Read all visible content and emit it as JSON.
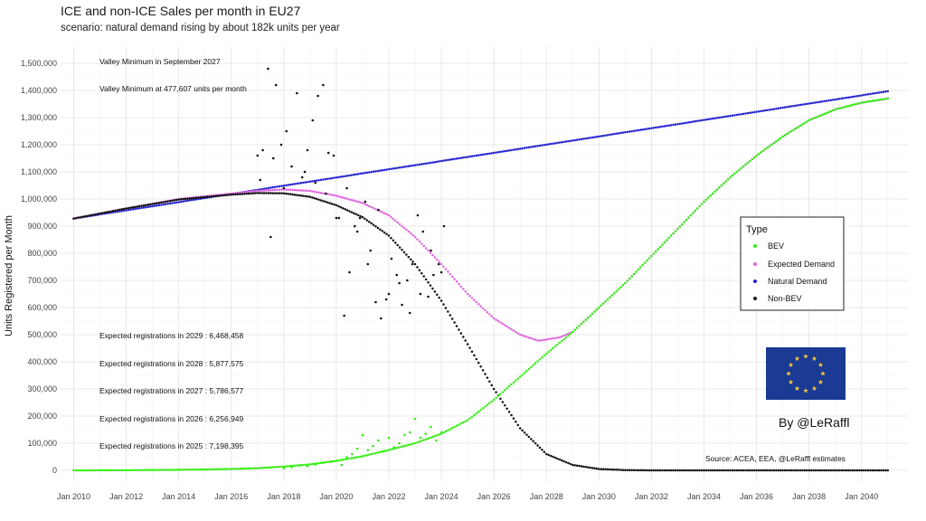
{
  "chart_data": {
    "type": "scatter",
    "title": "ICE and non-ICE Sales per month in EU27",
    "subtitle": "scenario: natural demand rising by about 182k units per year",
    "xlabel": "",
    "ylabel": "Units Registered per Month",
    "xlim": [
      2009.5,
      2041.8
    ],
    "ylim": [
      -40000,
      1560000
    ],
    "x_ticks": [
      2010,
      2012,
      2014,
      2016,
      2018,
      2020,
      2022,
      2024,
      2026,
      2028,
      2030,
      2032,
      2034,
      2036,
      2038,
      2040
    ],
    "x_tick_labels": [
      "Jan 2010",
      "Jan 2012",
      "Jan 2014",
      "Jan 2016",
      "Jan 2018",
      "Jan 2020",
      "Jan 2022",
      "Jan 2024",
      "Jan 2026",
      "Jan 2028",
      "Jan 2030",
      "Jan 2032",
      "Jan 2034",
      "Jan 2036",
      "Jan 2038",
      "Jan 2040"
    ],
    "y_ticks": [
      0,
      100000,
      200000,
      300000,
      400000,
      500000,
      600000,
      700000,
      800000,
      900000,
      1000000,
      1100000,
      1200000,
      1300000,
      1400000,
      1500000
    ],
    "y_tick_labels": [
      "0",
      "100,000",
      "200,000",
      "300,000",
      "400,000",
      "500,000",
      "600,000",
      "700,000",
      "800,000",
      "900,000",
      "1,000,000",
      "1,100,000",
      "1,200,000",
      "1,300,000",
      "1,400,000",
      "1,500,000"
    ],
    "grid": true,
    "series": [
      {
        "name": "BEV",
        "color": "#33ee11",
        "marker": "dot",
        "x": [
          2010,
          2012,
          2014,
          2016,
          2017,
          2018,
          2019,
          2020,
          2021,
          2022,
          2023,
          2024,
          2025,
          2026,
          2027,
          2028,
          2029,
          2030,
          2031,
          2032,
          2033,
          2034,
          2035,
          2036,
          2037,
          2038,
          2039,
          2040,
          2041
        ],
        "y": [
          0,
          500,
          2000,
          5000,
          8000,
          14000,
          22000,
          35000,
          52000,
          75000,
          100000,
          135000,
          185000,
          260000,
          345000,
          430000,
          510000,
          600000,
          690000,
          790000,
          890000,
          990000,
          1080000,
          1160000,
          1230000,
          1290000,
          1330000,
          1355000,
          1370000
        ]
      },
      {
        "name": "Expected Demand",
        "color": "#dd66dd",
        "marker": "dot",
        "x": [
          2010,
          2012,
          2014,
          2016,
          2017,
          2018,
          2019,
          2020,
          2021,
          2022,
          2023,
          2024,
          2025,
          2026,
          2027,
          2027.7,
          2028.5,
          2029,
          2030,
          2031,
          2032,
          2033,
          2034,
          2035,
          2036,
          2037,
          2038,
          2039,
          2040,
          2041
        ],
        "y": [
          928000,
          965000,
          1000000,
          1020000,
          1030000,
          1035000,
          1030000,
          1012000,
          985000,
          940000,
          860000,
          760000,
          650000,
          560000,
          500000,
          477607,
          490000,
          510000,
          600000,
          690000,
          790000,
          890000,
          990000,
          1080000,
          1160000,
          1230000,
          1290000,
          1330000,
          1355000,
          1370000
        ]
      },
      {
        "name": "Natural Demand",
        "color": "#2222cc",
        "marker": "dot",
        "x": [
          2010,
          2041
        ],
        "y": [
          928000,
          1397000
        ]
      },
      {
        "name": "Non-BEV",
        "color": "#111111",
        "marker": "dot",
        "x": [
          2010,
          2012,
          2014,
          2016,
          2017,
          2018,
          2019,
          2020,
          2021,
          2022,
          2023,
          2024,
          2025,
          2026,
          2027,
          2028,
          2029,
          2030,
          2031,
          2032,
          2034,
          2036,
          2038,
          2040,
          2041
        ],
        "y": [
          928000,
          965000,
          998000,
          1016000,
          1022000,
          1021000,
          1008000,
          977000,
          933000,
          865000,
          760000,
          625000,
          465000,
          300000,
          155000,
          60000,
          20000,
          5000,
          1000,
          0,
          0,
          0,
          0,
          0,
          0
        ]
      },
      {
        "name": "Non-BEV (observed)",
        "color": "#111111",
        "marker": "dot",
        "x": [
          2017.0,
          2017.2,
          2017.4,
          2017.5,
          2017.7,
          2017.9,
          2018.1,
          2018.3,
          2018.5,
          2018.7,
          2018.9,
          2019.1,
          2019.3,
          2019.5,
          2019.7,
          2019.9,
          2020.1,
          2020.3,
          2020.5,
          2020.7,
          2020.9,
          2021.1,
          2021.3,
          2021.5,
          2021.7,
          2021.9,
          2022.1,
          2022.3,
          2022.5,
          2022.7,
          2022.9,
          2023.1,
          2023.3,
          2023.5,
          2023.7,
          2023.9,
          2024.1,
          2017.1,
          2017.6,
          2018.0,
          2018.8,
          2019.2,
          2019.6,
          2020.0,
          2020.4,
          2020.8,
          2021.2,
          2021.6,
          2022.0,
          2022.4,
          2022.8,
          2023.2,
          2023.6,
          2024.0
        ],
        "y": [
          1160000,
          1180000,
          1480000,
          860000,
          1420000,
          1200000,
          1250000,
          1120000,
          1390000,
          1080000,
          1180000,
          1290000,
          1380000,
          1420000,
          1170000,
          1160000,
          930000,
          570000,
          730000,
          900000,
          930000,
          990000,
          810000,
          620000,
          560000,
          630000,
          780000,
          720000,
          610000,
          700000,
          760000,
          940000,
          880000,
          640000,
          720000,
          760000,
          900000,
          1070000,
          1150000,
          1040000,
          1100000,
          1060000,
          1020000,
          930000,
          1040000,
          880000,
          760000,
          960000,
          650000,
          690000,
          580000,
          650000,
          810000,
          730000
        ]
      },
      {
        "name": "BEV (observed)",
        "color": "#33ee11",
        "marker": "dot",
        "x": [
          2018.0,
          2018.3,
          2018.6,
          2018.9,
          2019.2,
          2019.5,
          2019.8,
          2020.0,
          2020.2,
          2020.4,
          2020.6,
          2020.8,
          2021.0,
          2021.2,
          2021.4,
          2021.6,
          2021.8,
          2022.0,
          2022.2,
          2022.4,
          2022.6,
          2022.8,
          2023.0,
          2023.2,
          2023.4,
          2023.6,
          2023.8,
          2024.0
        ],
        "y": [
          8000,
          12000,
          18000,
          15000,
          22000,
          28000,
          32000,
          35000,
          20000,
          48000,
          60000,
          80000,
          130000,
          75000,
          90000,
          110000,
          70000,
          120000,
          85000,
          100000,
          130000,
          140000,
          190000,
          120000,
          135000,
          160000,
          110000,
          140000
        ]
      }
    ],
    "annotations": {
      "top": [
        "Valley Minimum in September 2027",
        "Valley Minimum at 477,607 units per month"
      ],
      "registrations": [
        "Expected registrations in 2029 : 6,468,458",
        "Expected registrations in 2028 : 5,877,575",
        "Expected registrations in 2027 : 5,786,577",
        "Expected registrations in 2026 : 6,256,949",
        "Expected registrations in 2025 : 7,198,395"
      ]
    },
    "legend": {
      "title": "Type",
      "position": "right",
      "items": [
        {
          "label": "BEV",
          "color": "#33ee11"
        },
        {
          "label": "Expected Demand",
          "color": "#dd66dd"
        },
        {
          "label": "Natural Demand",
          "color": "#2222cc"
        },
        {
          "label": "Non-BEV",
          "color": "#111111"
        }
      ]
    },
    "credit": "By @LeRaffl",
    "source": "Source: ACEA, EEA, @LeRaffl estimates",
    "flag_colors": {
      "background": "#1b3a94",
      "stars": "#f4c542"
    }
  }
}
